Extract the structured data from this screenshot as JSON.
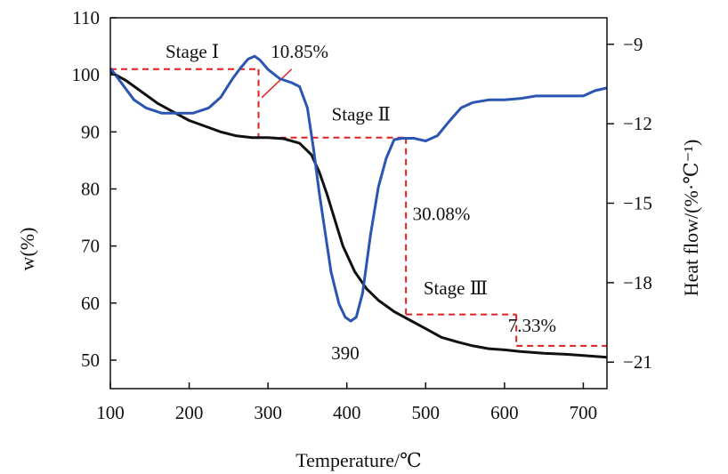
{
  "chart_data": {
    "type": "line",
    "xlabel": "Temperature/℃",
    "ylabel_left": "w(%)",
    "ylabel_right": "Heat flow/(%·℃⁻¹)",
    "xlim": [
      100,
      730
    ],
    "ylim_left": [
      45,
      110
    ],
    "ylim_right": [
      -22,
      -8
    ],
    "x_ticks": [
      "100",
      "200",
      "300",
      "400",
      "500",
      "600",
      "700"
    ],
    "y_left_ticks": [
      "50",
      "60",
      "70",
      "80",
      "90",
      "100",
      "110"
    ],
    "y_right_ticks": [
      "-9",
      "-12",
      "-15",
      "-18",
      "-21"
    ],
    "grid": false,
    "series": [
      {
        "axis": "left",
        "color": "#111111",
        "points": [
          [
            100,
            100.5
          ],
          [
            120,
            99
          ],
          [
            140,
            97
          ],
          [
            160,
            95
          ],
          [
            180,
            93.5
          ],
          [
            200,
            92
          ],
          [
            220,
            91
          ],
          [
            240,
            90
          ],
          [
            260,
            89.3
          ],
          [
            280,
            89
          ],
          [
            300,
            89
          ],
          [
            320,
            88.8
          ],
          [
            340,
            88
          ],
          [
            355,
            86
          ],
          [
            365,
            83
          ],
          [
            375,
            79
          ],
          [
            385,
            74.5
          ],
          [
            395,
            70
          ],
          [
            410,
            65.5
          ],
          [
            425,
            62.5
          ],
          [
            440,
            60.5
          ],
          [
            460,
            58.5
          ],
          [
            480,
            57
          ],
          [
            500,
            55.5
          ],
          [
            520,
            54
          ],
          [
            540,
            53.2
          ],
          [
            560,
            52.5
          ],
          [
            580,
            52
          ],
          [
            600,
            51.8
          ],
          [
            620,
            51.5
          ],
          [
            650,
            51.2
          ],
          [
            680,
            51
          ],
          [
            700,
            50.8
          ],
          [
            730,
            50.5
          ]
        ]
      },
      {
        "axis": "right",
        "color": "#2b55b2",
        "points": [
          [
            100,
            -9.9
          ],
          [
            115,
            -10.5
          ],
          [
            130,
            -11.1
          ],
          [
            145,
            -11.4
          ],
          [
            165,
            -11.6
          ],
          [
            185,
            -11.6
          ],
          [
            205,
            -11.6
          ],
          [
            225,
            -11.4
          ],
          [
            240,
            -11.0
          ],
          [
            255,
            -10.3
          ],
          [
            265,
            -9.9
          ],
          [
            275,
            -9.55
          ],
          [
            283,
            -9.45
          ],
          [
            290,
            -9.6
          ],
          [
            300,
            -9.95
          ],
          [
            315,
            -10.3
          ],
          [
            330,
            -10.45
          ],
          [
            340,
            -10.6
          ],
          [
            350,
            -11.4
          ],
          [
            358,
            -13.0
          ],
          [
            365,
            -14.6
          ],
          [
            372,
            -16.0
          ],
          [
            380,
            -17.6
          ],
          [
            390,
            -18.8
          ],
          [
            398,
            -19.3
          ],
          [
            405,
            -19.45
          ],
          [
            412,
            -19.3
          ],
          [
            420,
            -18.4
          ],
          [
            430,
            -16.2
          ],
          [
            440,
            -14.4
          ],
          [
            450,
            -13.3
          ],
          [
            460,
            -12.6
          ],
          [
            470,
            -12.55
          ],
          [
            485,
            -12.55
          ],
          [
            500,
            -12.65
          ],
          [
            515,
            -12.45
          ],
          [
            530,
            -11.9
          ],
          [
            545,
            -11.4
          ],
          [
            560,
            -11.2
          ],
          [
            580,
            -11.1
          ],
          [
            600,
            -11.1
          ],
          [
            620,
            -11.05
          ],
          [
            640,
            -10.95
          ],
          [
            660,
            -10.95
          ],
          [
            680,
            -10.95
          ],
          [
            700,
            -10.95
          ],
          [
            715,
            -10.75
          ],
          [
            730,
            -10.65
          ]
        ]
      }
    ],
    "stage_guides": {
      "color": "#e02020",
      "lines": [
        [
          [
            100,
            101
          ],
          [
            288,
            101
          ]
        ],
        [
          [
            288,
            101
          ],
          [
            288,
            89
          ]
        ],
        [
          [
            288,
            89
          ],
          [
            475,
            89
          ]
        ],
        [
          [
            475,
            89
          ],
          [
            475,
            58
          ]
        ],
        [
          [
            475,
            58
          ],
          [
            615,
            58
          ]
        ],
        [
          [
            615,
            58
          ],
          [
            615,
            52.5
          ]
        ],
        [
          [
            615,
            52.5
          ],
          [
            730,
            52.5
          ]
        ]
      ]
    },
    "annotations": [
      {
        "text": "Stage Ⅰ",
        "x": 204,
        "y": 103,
        "axis": "left"
      },
      {
        "text": "10.85%",
        "x": 340,
        "y": 103,
        "axis": "left"
      },
      {
        "text": "Stage Ⅱ",
        "x": 418,
        "y": 92,
        "axis": "left"
      },
      {
        "text": "30.08%",
        "x": 520,
        "y": 74.5,
        "axis": "left"
      },
      {
        "text": "Stage Ⅲ",
        "x": 538,
        "y": 61.5,
        "axis": "left"
      },
      {
        "text": "7.33%",
        "x": 635,
        "y": 55,
        "axis": "left"
      },
      {
        "text": "390",
        "x": 398,
        "y": -20.9,
        "axis": "right"
      }
    ],
    "leader_line": {
      "color": "#e02020",
      "from": [
        292,
        96
      ],
      "to": [
        330,
        101
      ]
    }
  }
}
